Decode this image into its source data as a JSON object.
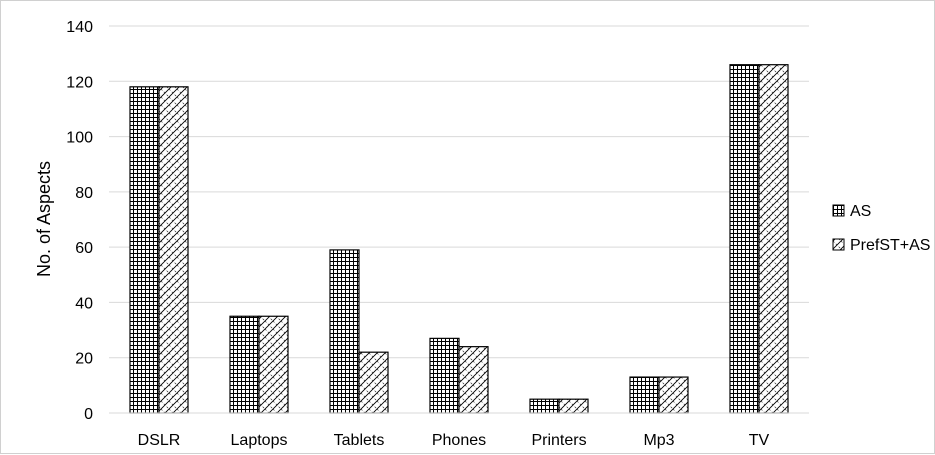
{
  "chart_data": {
    "type": "bar",
    "categories": [
      "DSLR",
      "Laptops",
      "Tablets",
      "Phones",
      "Printers",
      "Mp3",
      "TV"
    ],
    "series": [
      {
        "name": "AS",
        "values": [
          118,
          35,
          59,
          27,
          5,
          13,
          126
        ],
        "pattern": "grid"
      },
      {
        "name": "PrefST+AS",
        "values": [
          118,
          35,
          22,
          24,
          5,
          13,
          126
        ],
        "pattern": "diagonal-cross"
      }
    ],
    "title": "",
    "xlabel": "",
    "ylabel": "No. of Aspects",
    "ylim": [
      0,
      140
    ],
    "yticks": [
      0,
      20,
      40,
      60,
      80,
      100,
      120,
      140
    ],
    "grid": true,
    "legend_position": "right",
    "colors": {
      "bar_stroke": "#000000",
      "grid": "#d9d9d9",
      "pattern_fill": "#ffffff"
    }
  }
}
